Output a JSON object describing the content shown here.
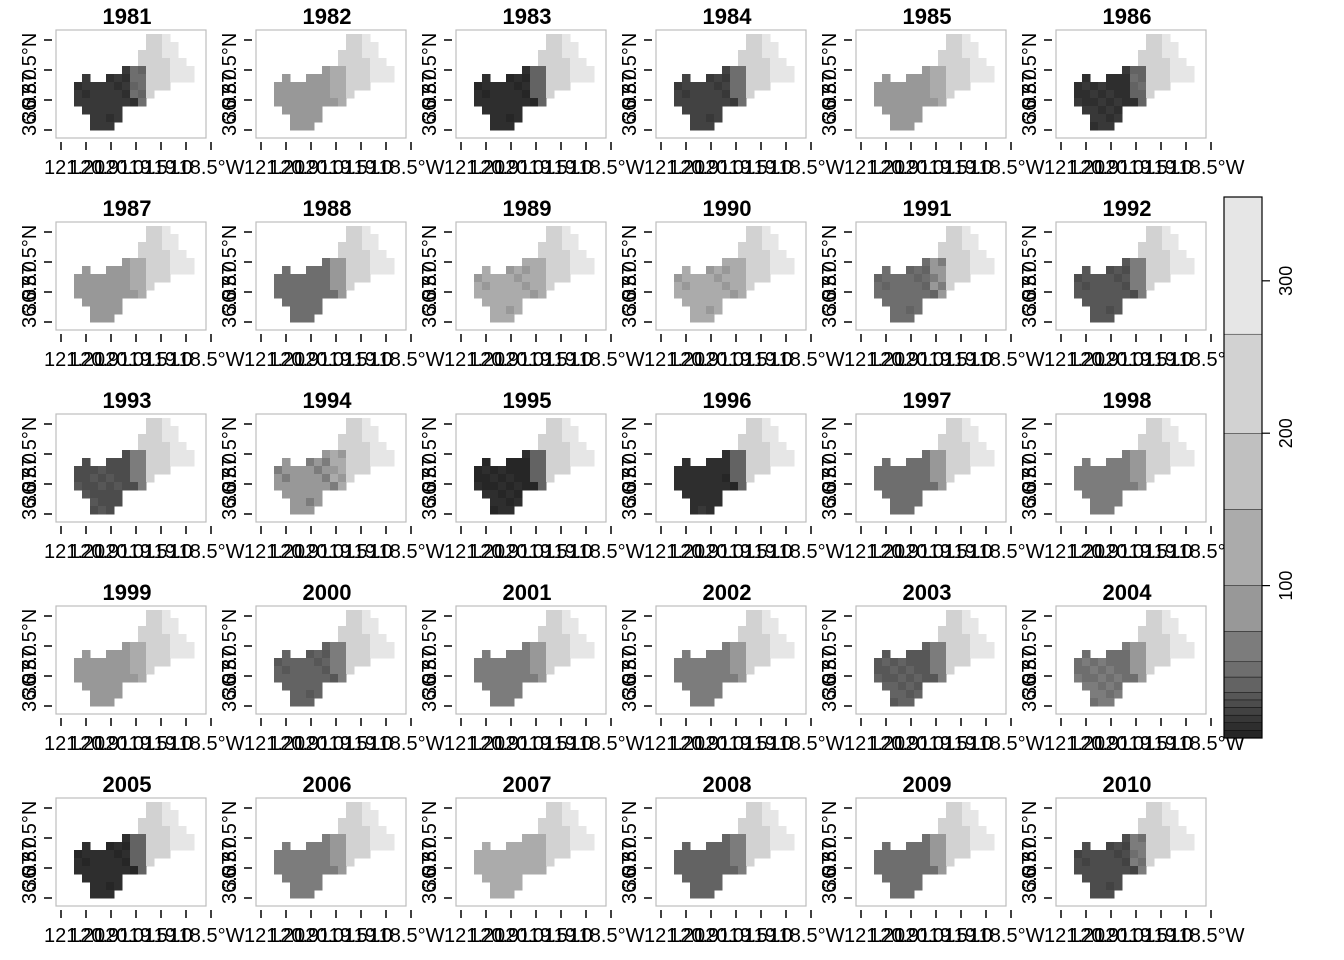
{
  "figure": {
    "type": "raster-map-grid",
    "years": [
      "1981",
      "1982",
      "1983",
      "1984",
      "1985",
      "1986",
      "1987",
      "1988",
      "1989",
      "1990",
      "1991",
      "1992",
      "1993",
      "1994",
      "1995",
      "1996",
      "1997",
      "1998",
      "1999",
      "2000",
      "2001",
      "2002",
      "2003",
      "2004",
      "2005",
      "2006",
      "2007",
      "2008",
      "2009",
      "2010"
    ],
    "ncols": 6,
    "x_tick_texts": [
      "121.20",
      "120.9",
      "120.0",
      "119.5",
      "119.0",
      "118.5°W"
    ],
    "y_tick_texts": [
      "36.0",
      "36.5",
      "37.0",
      "37.5°N"
    ],
    "colors": {
      "panel_border": "#bdbdbd",
      "axis": "#000000"
    }
  },
  "colorbar": {
    "labels": [
      "100",
      "200",
      "300"
    ],
    "label_values": [
      100,
      200,
      300
    ],
    "breaks": [
      0,
      5,
      10,
      15,
      20,
      25,
      30,
      40,
      50,
      70,
      100,
      150,
      200,
      265,
      355
    ],
    "colors": [
      "#262626",
      "#2e2e2e",
      "#383838",
      "#424242",
      "#4c4c4c",
      "#575757",
      "#636363",
      "#6e6e6e",
      "#7c7c7c",
      "#989898",
      "#ababab",
      "#c0c0c0",
      "#d2d2d2",
      "#e6e6e6"
    ]
  },
  "panel_level": {
    "1981": 10,
    "1982": 72,
    "1983": 5,
    "1984": 15,
    "1985": 95,
    "1986": 8,
    "1987": 85,
    "1988": 45,
    "1989": 100,
    "1990": 100,
    "1991": 40,
    "1992": 25,
    "1993": 22,
    "1994": 70,
    "1995": 3,
    "1996": 6,
    "1997": 42,
    "1998": 60,
    "1999": 88,
    "2000": 30,
    "2001": 55,
    "2002": 58,
    "2003": 28,
    "2004": 48,
    "2005": 5,
    "2006": 62,
    "2007": 105,
    "2008": 35,
    "2009": 42,
    "2010": 20
  }
}
